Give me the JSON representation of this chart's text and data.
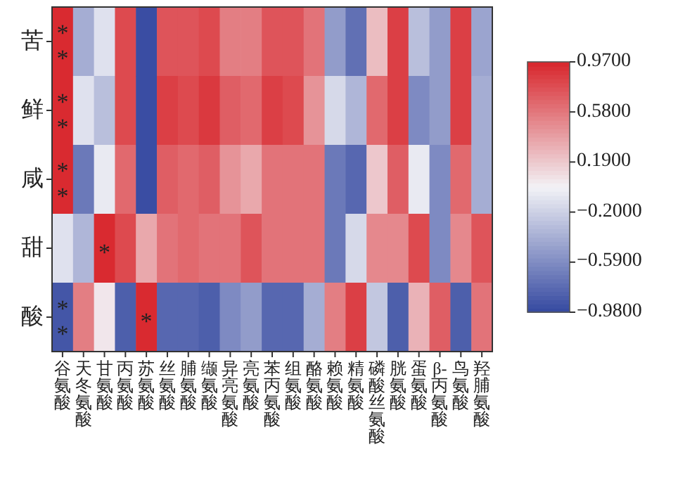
{
  "chart_data": {
    "type": "heatmap",
    "categories": [
      "谷氨酸",
      "天冬氨酸",
      "甘氨酸",
      "丙氨酸",
      "苏氨酸",
      "丝氨酸",
      "脯氨酸",
      "缬氨酸",
      "异亮氨酸",
      "亮氨酸",
      "苯丙氨酸",
      "组氨酸",
      "酪氨酸",
      "赖氨酸",
      "精氨酸",
      "磷酸丝氨酸",
      "胱氨酸",
      "蛋氨酸",
      "β-丙氨酸",
      "鸟氨酸",
      "羟脯氨酸"
    ],
    "y_categories": [
      "苦",
      "鲜",
      "咸",
      "甜",
      "酸"
    ],
    "cells": [
      [
        0.95,
        -0.4,
        -0.1,
        0.8,
        -0.95,
        0.75,
        0.75,
        0.8,
        0.55,
        0.55,
        0.75,
        0.75,
        0.6,
        -0.5,
        -0.75,
        0.25,
        0.85,
        -0.3,
        -0.5,
        0.85,
        -0.45
      ],
      [
        0.95,
        -0.1,
        -0.3,
        0.8,
        -0.95,
        0.85,
        0.8,
        0.88,
        0.7,
        0.65,
        0.85,
        0.8,
        0.45,
        -0.15,
        -0.35,
        0.65,
        0.85,
        -0.6,
        -0.5,
        0.85,
        -0.4
      ],
      [
        0.95,
        -0.7,
        -0.05,
        0.65,
        -0.95,
        0.7,
        0.65,
        0.7,
        0.45,
        0.35,
        0.6,
        0.6,
        0.6,
        -0.7,
        -0.8,
        0.2,
        0.7,
        -0.05,
        -0.6,
        0.65,
        -0.4
      ],
      [
        -0.1,
        -0.35,
        0.95,
        0.8,
        0.35,
        0.6,
        0.65,
        0.6,
        0.6,
        0.75,
        0.6,
        0.6,
        0.6,
        -0.7,
        -0.15,
        0.5,
        0.5,
        0.8,
        -0.6,
        0.5,
        0.75
      ],
      [
        -0.9,
        0.55,
        0.05,
        -0.85,
        0.95,
        -0.8,
        -0.8,
        -0.85,
        -0.6,
        -0.5,
        -0.8,
        -0.8,
        -0.4,
        0.55,
        0.85,
        -0.25,
        -0.85,
        0.3,
        0.7,
        -0.85,
        0.6
      ]
    ],
    "cell_labels": [
      [
        "**",
        null,
        null,
        null,
        null,
        null,
        null,
        null,
        null,
        null,
        null,
        null,
        null,
        null,
        null,
        null,
        null,
        null,
        null,
        null,
        null
      ],
      [
        "**",
        null,
        null,
        null,
        null,
        null,
        null,
        null,
        null,
        null,
        null,
        null,
        null,
        null,
        null,
        null,
        null,
        null,
        null,
        null,
        null
      ],
      [
        "**",
        null,
        null,
        null,
        null,
        null,
        null,
        null,
        null,
        null,
        null,
        null,
        null,
        null,
        null,
        null,
        null,
        null,
        null,
        null,
        null
      ],
      [
        null,
        null,
        "*",
        null,
        null,
        null,
        null,
        null,
        null,
        null,
        null,
        null,
        null,
        null,
        null,
        null,
        null,
        null,
        null,
        null,
        null
      ],
      [
        "**",
        null,
        null,
        null,
        "*",
        null,
        null,
        null,
        null,
        null,
        null,
        null,
        null,
        null,
        null,
        null,
        null,
        null,
        null,
        null,
        null
      ]
    ],
    "clim": [
      -0.98,
      0.97
    ],
    "cticks": [
      {
        "value": 0.97,
        "label": "0.9700"
      },
      {
        "value": 0.58,
        "label": "0.5800"
      },
      {
        "value": 0.19,
        "label": "0.1900"
      },
      {
        "value": -0.2,
        "label": "−0.2000"
      },
      {
        "value": -0.59,
        "label": "−0.5900"
      },
      {
        "value": -0.98,
        "label": "−0.9800"
      }
    ]
  }
}
